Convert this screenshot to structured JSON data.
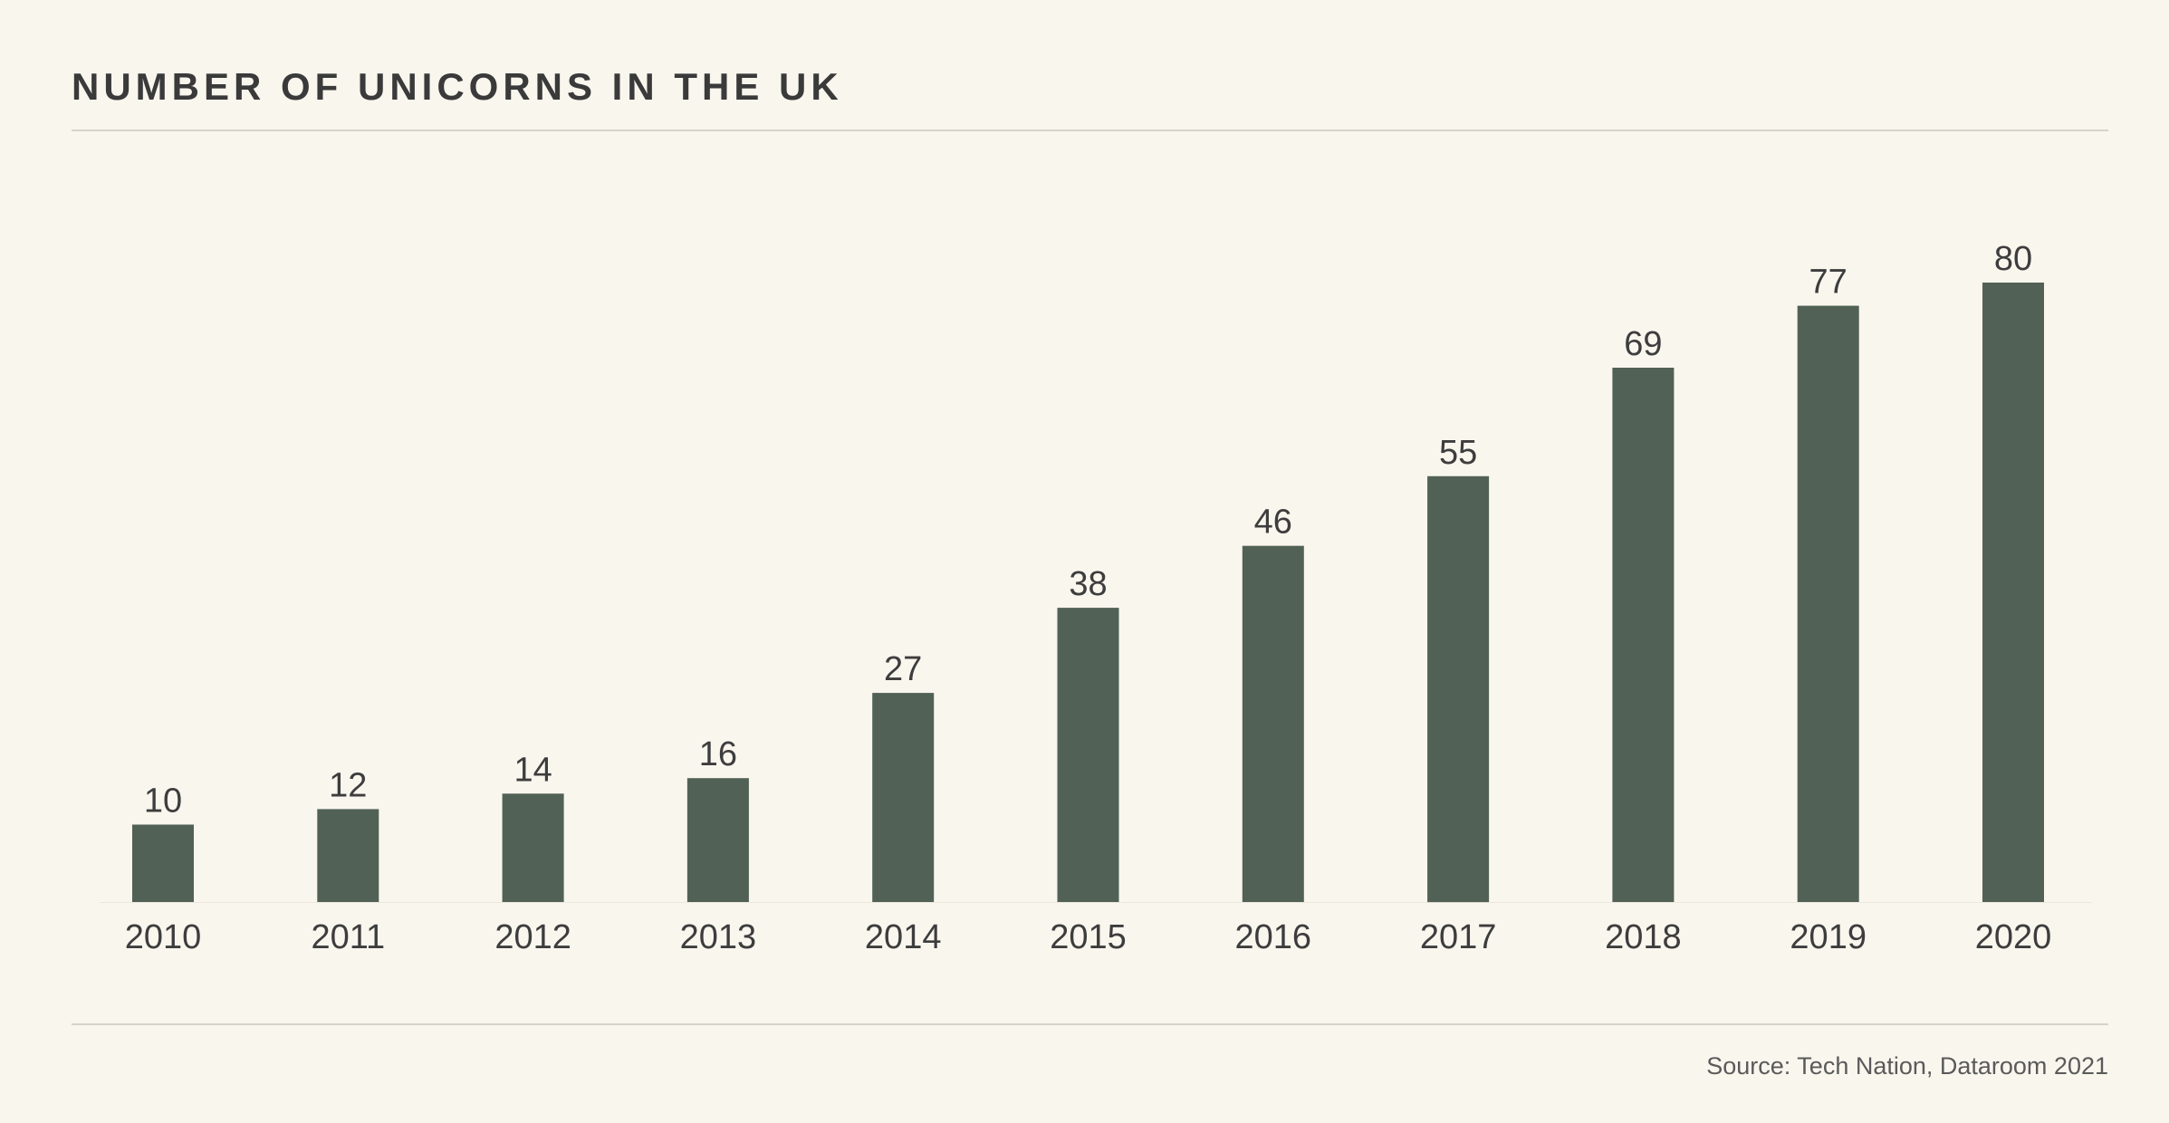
{
  "title": "NUMBER OF UNICORNS IN THE UK",
  "source": "Source: Tech Nation, Dataroom 2021",
  "colors": {
    "background": "#f9f6ee",
    "bar": "#526155",
    "text": "#3d3d3d",
    "rule": "#d7d3ca"
  },
  "chart_data": {
    "type": "bar",
    "title": "NUMBER OF UNICORNS IN THE UK",
    "categories": [
      "2010",
      "2011",
      "2012",
      "2013",
      "2014",
      "2015",
      "2016",
      "2017",
      "2018",
      "2019",
      "2020"
    ],
    "values": [
      10,
      12,
      14,
      16,
      27,
      38,
      46,
      55,
      69,
      77,
      80
    ],
    "xlabel": "",
    "ylabel": "",
    "ylim": [
      0,
      80
    ],
    "grid": false,
    "data_labels": true
  }
}
